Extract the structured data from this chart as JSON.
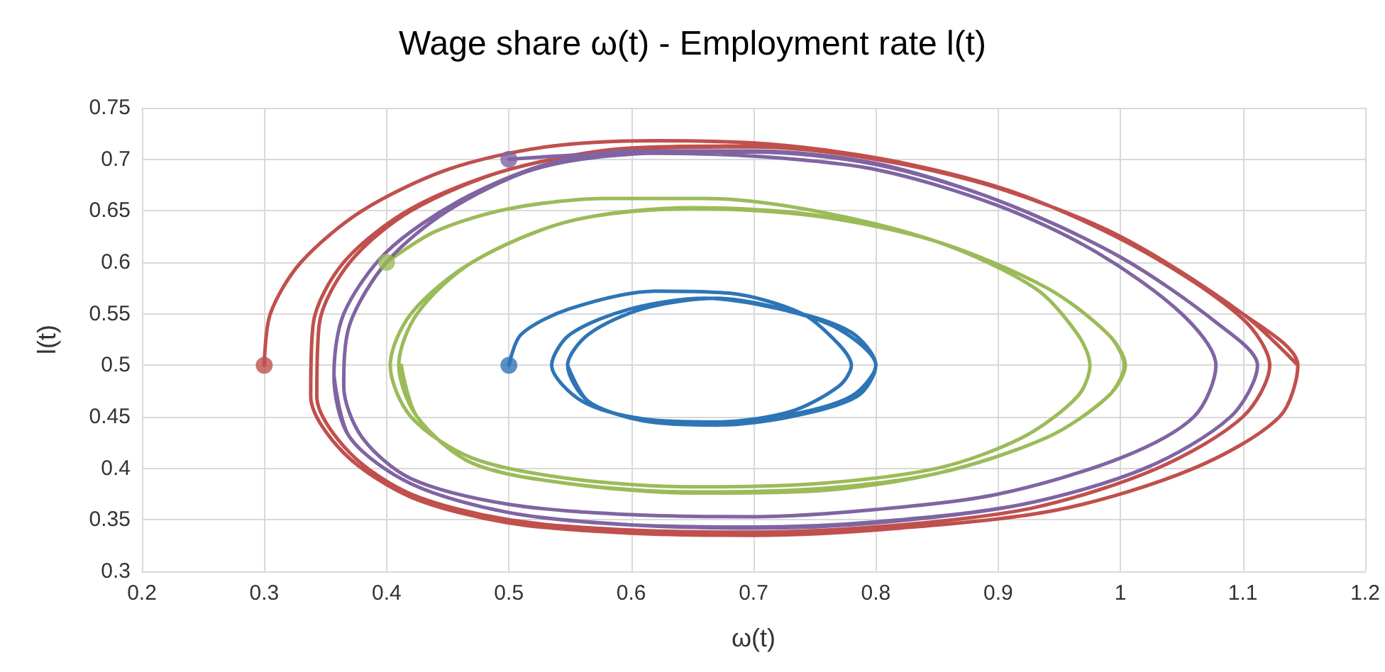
{
  "chart_data": {
    "type": "line",
    "title": "Wage share ω(t) - Employment rate l(t)",
    "xlabel": "ω(t)",
    "ylabel": "l(t)",
    "xlim": [
      0.2,
      1.2
    ],
    "xticks": [
      0.2,
      0.3,
      0.4,
      0.5,
      0.6,
      0.7,
      0.8,
      0.9,
      1,
      1.1,
      1.2
    ],
    "ylim": [
      0.3,
      0.75
    ],
    "yticks": [
      0.3,
      0.35,
      0.4,
      0.45,
      0.5,
      0.55,
      0.6,
      0.65,
      0.7,
      0.75
    ],
    "grid": true,
    "marker": "none",
    "line_style": "solid",
    "series": [
      {
        "color": "#2e75b6",
        "x": [
          0.5,
          0.51,
          0.55,
          0.62,
          0.68,
          0.74,
          0.77,
          0.78,
          0.77,
          0.73,
          0.67,
          0.61,
          0.56,
          0.535,
          0.55,
          0.6,
          0.66,
          0.72,
          0.77,
          0.8,
          0.78,
          0.73,
          0.67,
          0.61,
          0.565,
          0.548,
          0.565,
          0.61,
          0.67,
          0.73,
          0.78,
          0.8,
          0.785,
          0.73,
          0.67,
          0.61,
          0.565,
          0.548
        ],
        "values": [
          0.5,
          0.53,
          0.555,
          0.572,
          0.57,
          0.55,
          0.52,
          0.5,
          0.48,
          0.455,
          0.445,
          0.448,
          0.465,
          0.5,
          0.53,
          0.555,
          0.565,
          0.555,
          0.535,
          0.5,
          0.47,
          0.452,
          0.443,
          0.447,
          0.465,
          0.5,
          0.53,
          0.555,
          0.565,
          0.553,
          0.532,
          0.5,
          0.47,
          0.45,
          0.442,
          0.446,
          0.465,
          0.5
        ]
      },
      {
        "color": "#9bbb59",
        "x": [
          0.4,
          0.44,
          0.5,
          0.58,
          0.66,
          0.75,
          0.85,
          0.93,
          0.965,
          0.975,
          0.965,
          0.92,
          0.85,
          0.75,
          0.65,
          0.55,
          0.47,
          0.42,
          0.403,
          0.42,
          0.47,
          0.55,
          0.65,
          0.75,
          0.85,
          0.94,
          0.99,
          1.004,
          0.99,
          0.94,
          0.85,
          0.75,
          0.65,
          0.55,
          0.47,
          0.425,
          0.41,
          0.425,
          0.47,
          0.55,
          0.65,
          0.75,
          0.85,
          0.94,
          0.99,
          1.003,
          0.99,
          0.94,
          0.85,
          0.75,
          0.65,
          0.55,
          0.47,
          0.425,
          0.412
        ],
        "values": [
          0.6,
          0.63,
          0.652,
          0.662,
          0.662,
          0.65,
          0.62,
          0.575,
          0.53,
          0.5,
          0.47,
          0.43,
          0.4,
          0.385,
          0.382,
          0.39,
          0.41,
          0.45,
          0.5,
          0.55,
          0.6,
          0.64,
          0.652,
          0.645,
          0.62,
          0.575,
          0.53,
          0.5,
          0.47,
          0.43,
          0.395,
          0.38,
          0.377,
          0.385,
          0.405,
          0.45,
          0.5,
          0.55,
          0.6,
          0.64,
          0.653,
          0.646,
          0.62,
          0.575,
          0.53,
          0.5,
          0.47,
          0.43,
          0.395,
          0.378,
          0.376,
          0.385,
          0.405,
          0.45,
          0.5
        ]
      },
      {
        "color": "#c0504d",
        "x": [
          0.3,
          0.305,
          0.33,
          0.38,
          0.45,
          0.53,
          0.62,
          0.72,
          0.82,
          0.92,
          1.02,
          1.1,
          1.122,
          1.1,
          1.03,
          0.93,
          0.82,
          0.7,
          0.6,
          0.5,
          0.42,
          0.37,
          0.343,
          0.345,
          0.37,
          0.42,
          0.5,
          0.6,
          0.7,
          0.8,
          0.9,
          1,
          1.1,
          1.145,
          1.13,
          1.06,
          0.95,
          0.82,
          0.7,
          0.6,
          0.5,
          0.42,
          0.365,
          0.338,
          0.34,
          0.365,
          0.42,
          0.5,
          0.6,
          0.7,
          0.8,
          0.9,
          1,
          1.1,
          1.145
        ],
        "values": [
          0.5,
          0.55,
          0.6,
          0.65,
          0.69,
          0.712,
          0.718,
          0.714,
          0.697,
          0.665,
          0.61,
          0.545,
          0.5,
          0.45,
          0.4,
          0.362,
          0.345,
          0.338,
          0.34,
          0.35,
          0.375,
          0.415,
          0.47,
          0.54,
          0.6,
          0.65,
          0.69,
          0.71,
          0.712,
          0.7,
          0.672,
          0.625,
          0.55,
          0.5,
          0.45,
          0.4,
          0.36,
          0.342,
          0.335,
          0.337,
          0.347,
          0.372,
          0.415,
          0.47,
          0.54,
          0.6,
          0.652,
          0.69,
          0.711,
          0.713,
          0.7,
          0.672,
          0.625,
          0.55,
          0.5
        ]
      },
      {
        "color": "#8064a2",
        "x": [
          0.5,
          0.6,
          0.7,
          0.8,
          0.9,
          0.98,
          1.05,
          1.078,
          1.06,
          1,
          0.9,
          0.8,
          0.7,
          0.6,
          0.5,
          0.42,
          0.38,
          0.365,
          0.37,
          0.4,
          0.45,
          0.52,
          0.6,
          0.7,
          0.8,
          0.9,
          1,
          1.08,
          1.112,
          1.09,
          1.02,
          0.92,
          0.8,
          0.7,
          0.6,
          0.5,
          0.42,
          0.37,
          0.357,
          0.365,
          0.4,
          0.46,
          0.53,
          0.6,
          0.7,
          0.8,
          0.9,
          1,
          1.08,
          1.112,
          1.09,
          1.02,
          0.92,
          0.8,
          0.7,
          0.6,
          0.5,
          0.42,
          0.37,
          0.357
        ],
        "values": [
          0.7,
          0.706,
          0.703,
          0.69,
          0.655,
          0.61,
          0.55,
          0.5,
          0.45,
          0.41,
          0.375,
          0.36,
          0.353,
          0.355,
          0.365,
          0.39,
          0.43,
          0.48,
          0.54,
          0.6,
          0.65,
          0.69,
          0.705,
          0.707,
          0.695,
          0.66,
          0.605,
          0.54,
          0.5,
          0.45,
          0.4,
          0.365,
          0.348,
          0.343,
          0.345,
          0.357,
          0.385,
          0.43,
          0.49,
          0.55,
          0.61,
          0.66,
          0.695,
          0.708,
          0.708,
          0.696,
          0.66,
          0.605,
          0.54,
          0.5,
          0.45,
          0.4,
          0.365,
          0.347,
          0.342,
          0.345,
          0.357,
          0.385,
          0.43,
          0.49
        ]
      },
      {
        "type": "scatter",
        "marker": "circle",
        "color": "#2e75b6",
        "x": [
          0.5
        ],
        "values": [
          0.5
        ]
      },
      {
        "type": "scatter",
        "marker": "circle",
        "color": "#9bbb59",
        "x": [
          0.4
        ],
        "values": [
          0.6
        ]
      },
      {
        "type": "scatter",
        "marker": "circle",
        "color": "#c0504d",
        "x": [
          0.3
        ],
        "values": [
          0.5
        ]
      },
      {
        "type": "scatter",
        "marker": "circle",
        "color": "#8064a2",
        "x": [
          0.5
        ],
        "values": [
          0.7
        ]
      }
    ]
  }
}
